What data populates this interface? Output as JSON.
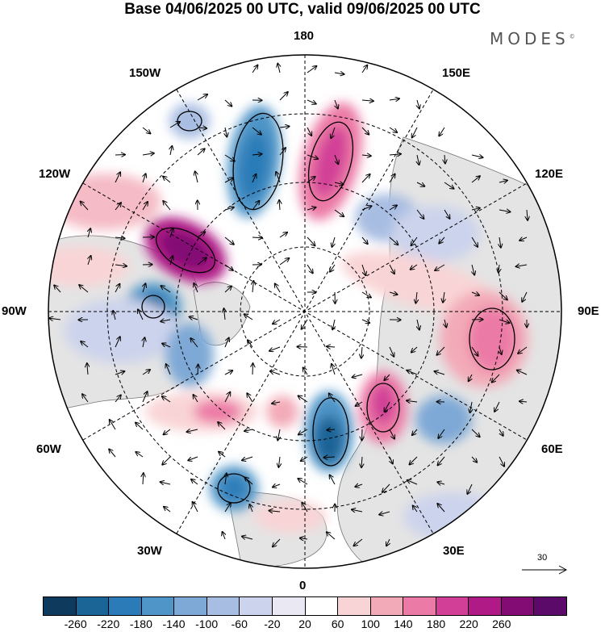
{
  "title": "Base 04/06/2025 00 UTC, valid 09/06/2025 00 UTC",
  "logo_text": "MODES",
  "logo_mark": "©",
  "longitude_labels": {
    "top": "180",
    "bottom": "0",
    "left": "90W",
    "right": "90E",
    "ul1": "150W",
    "ul2": "120W",
    "ur1": "150E",
    "ur2": "120E",
    "ll1": "60W",
    "ll2": "30W",
    "lr1": "60E",
    "lr2": "30E"
  },
  "reference_vector": "30",
  "colorbar": {
    "ticks": [
      "-260",
      "-220",
      "-180",
      "-140",
      "-100",
      "-60",
      "-20",
      "20",
      "60",
      "100",
      "140",
      "180",
      "220",
      "260"
    ],
    "colors": [
      "#0e3a5e",
      "#1a6496",
      "#2b7bb8",
      "#4f95c8",
      "#7ea9d6",
      "#a8bde2",
      "#ccd3ec",
      "#e9e8f3",
      "#ffffff",
      "#f9d4d6",
      "#f3aab8",
      "#ec7aa6",
      "#d23f97",
      "#b01a86",
      "#830b74",
      "#5c0a6a"
    ]
  },
  "colors": {
    "land": "#e6e6e6",
    "coast": "#6d6d6d",
    "ocean": "#ffffff"
  }
}
